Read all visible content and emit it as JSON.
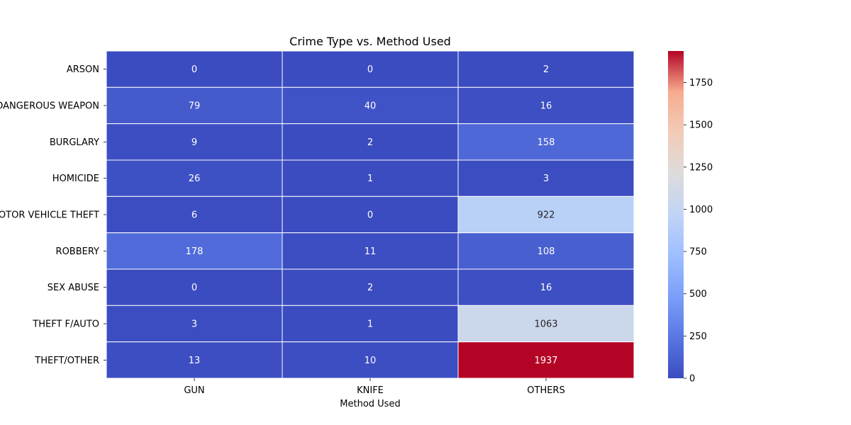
{
  "chart_data": {
    "type": "heatmap",
    "title": "Crime Type vs. Method Used",
    "xlabel": "Method Used",
    "ylabel": "",
    "x_categories": [
      "GUN",
      "KNIFE",
      "OTHERS"
    ],
    "y_categories": [
      "ARSON",
      "ASSAULT W/DANGEROUS WEAPON",
      "BURGLARY",
      "HOMICIDE",
      "MOTOR VEHICLE THEFT",
      "ROBBERY",
      "SEX ABUSE",
      "THEFT F/AUTO",
      "THEFT/OTHER"
    ],
    "values": [
      [
        0,
        0,
        2
      ],
      [
        79,
        40,
        16
      ],
      [
        9,
        2,
        158
      ],
      [
        26,
        1,
        3
      ],
      [
        6,
        0,
        922
      ],
      [
        178,
        11,
        108
      ],
      [
        0,
        2,
        16
      ],
      [
        3,
        1,
        1063
      ],
      [
        13,
        10,
        1937
      ]
    ],
    "colormap": "coolwarm",
    "colorbar": {
      "range": [
        0,
        1937
      ],
      "ticks": [
        0,
        250,
        500,
        750,
        1000,
        1250,
        1500,
        1750
      ]
    }
  }
}
